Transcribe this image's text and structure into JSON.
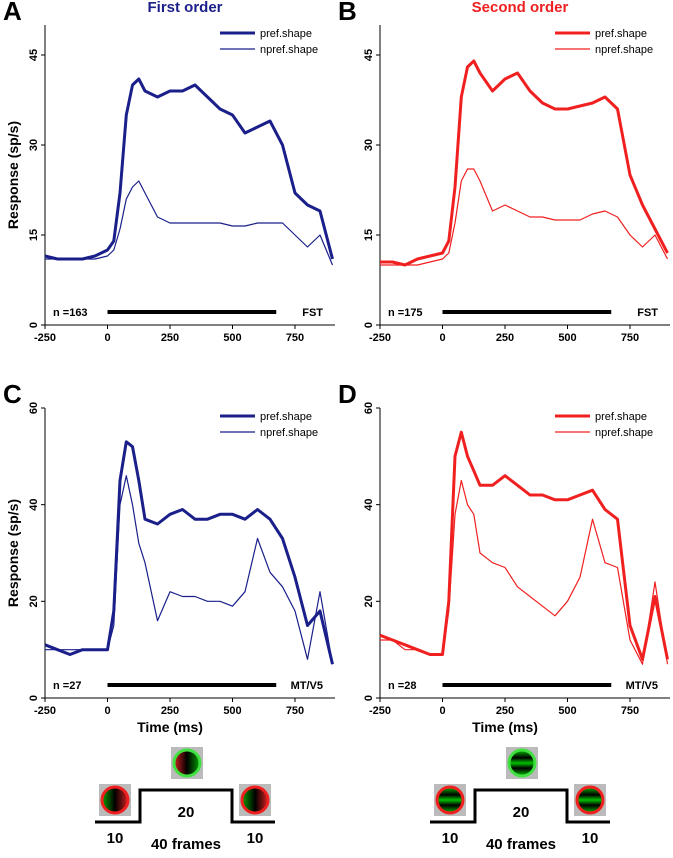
{
  "chart_data": [
    {
      "type": "line",
      "panel_label": "A",
      "title": "First order",
      "title_color": "#1a1f8a",
      "ylabel": "Response (sp/s)",
      "x": [
        -250,
        -200,
        -150,
        -100,
        -50,
        0,
        25,
        50,
        75,
        100,
        125,
        150,
        200,
        250,
        300,
        350,
        400,
        450,
        500,
        550,
        600,
        650,
        700,
        750,
        800,
        850,
        900
      ],
      "series": [
        {
          "name": "pref.shape",
          "color": "#1a1f8a",
          "width": 3,
          "values": [
            11.5,
            11,
            11,
            11,
            11.5,
            12.5,
            14,
            22,
            35,
            40,
            41,
            39,
            38,
            39,
            39,
            40,
            38,
            36,
            35,
            32,
            33,
            34,
            30,
            22,
            20,
            19,
            11
          ]
        },
        {
          "name": "npref.shape",
          "color": "#1a1f8a",
          "width": 1.2,
          "values": [
            11,
            11,
            11,
            11,
            11,
            11.5,
            12.5,
            16,
            21,
            23,
            24,
            22,
            18,
            17,
            17,
            17,
            17,
            17,
            16.5,
            16.5,
            17,
            17,
            17,
            15,
            13,
            15,
            10
          ]
        }
      ],
      "xlim": [
        -250,
        910
      ],
      "ylim": [
        0,
        50
      ],
      "xticks": [
        -250,
        0,
        250,
        500,
        750
      ],
      "yticks": [
        0,
        15,
        30,
        45
      ],
      "stimulus_window": [
        0,
        675
      ],
      "annotations": [
        "n =163",
        "FST"
      ]
    },
    {
      "type": "line",
      "panel_label": "B",
      "title": "Second order",
      "title_color": "#f02020",
      "x": [
        -250,
        -200,
        -150,
        -100,
        -50,
        0,
        25,
        50,
        75,
        100,
        125,
        150,
        200,
        250,
        300,
        350,
        400,
        450,
        500,
        550,
        600,
        650,
        700,
        750,
        800,
        850,
        900
      ],
      "series": [
        {
          "name": "pref.shape",
          "color": "#f02020",
          "width": 3,
          "values": [
            10.5,
            10.5,
            10,
            11,
            11.5,
            12,
            14,
            23,
            38,
            43,
            44,
            42,
            39,
            41,
            42,
            39,
            37,
            36,
            36,
            36.5,
            37,
            38,
            36,
            25,
            20,
            16,
            12
          ]
        },
        {
          "name": "npref.shape",
          "color": "#f02020",
          "width": 1.2,
          "values": [
            10,
            10,
            10,
            10,
            10.5,
            11,
            12,
            17,
            24,
            26,
            26,
            24,
            19,
            20,
            19,
            18,
            18,
            17.5,
            17.5,
            17.5,
            18.5,
            19,
            18,
            15,
            13,
            15,
            11
          ]
        }
      ],
      "xlim": [
        -250,
        910
      ],
      "ylim": [
        0,
        50
      ],
      "xticks": [
        -250,
        0,
        250,
        500,
        750
      ],
      "yticks": [
        0,
        15,
        30,
        45
      ],
      "stimulus_window": [
        0,
        675
      ],
      "annotations": [
        "n =175",
        "FST"
      ]
    },
    {
      "type": "line",
      "panel_label": "C",
      "ylabel": "Response (sp/s)",
      "xlabel": "Time (ms)",
      "x": [
        -250,
        -200,
        -150,
        -100,
        -50,
        0,
        25,
        50,
        75,
        100,
        125,
        150,
        200,
        250,
        300,
        350,
        400,
        450,
        500,
        550,
        600,
        650,
        700,
        750,
        800,
        850,
        900
      ],
      "series": [
        {
          "name": "pref.shape",
          "color": "#1a1f8a",
          "width": 3,
          "values": [
            11,
            10,
            9,
            10,
            10,
            10,
            18,
            45,
            53,
            52,
            45,
            37,
            36,
            38,
            39,
            37,
            37,
            38,
            38,
            37,
            39,
            37,
            33,
            25,
            15,
            18,
            7
          ]
        },
        {
          "name": "npref.shape",
          "color": "#1a1f8a",
          "width": 1.2,
          "values": [
            10,
            10,
            10,
            10,
            10,
            10,
            15,
            40,
            46,
            40,
            32,
            28,
            16,
            22,
            21,
            21,
            20,
            20,
            19,
            22,
            33,
            26,
            23,
            18,
            8,
            22,
            7
          ]
        }
      ],
      "xlim": [
        -250,
        910
      ],
      "ylim": [
        0,
        60
      ],
      "xticks": [
        -250,
        0,
        250,
        500,
        750
      ],
      "yticks": [
        0,
        20,
        40,
        60
      ],
      "stimulus_window": [
        0,
        675
      ],
      "annotations": [
        "n =27",
        "MT/V5"
      ]
    },
    {
      "type": "line",
      "panel_label": "D",
      "xlabel": "Time (ms)",
      "x": [
        -250,
        -200,
        -150,
        -100,
        -50,
        0,
        25,
        50,
        75,
        100,
        125,
        150,
        200,
        250,
        300,
        350,
        400,
        450,
        500,
        550,
        600,
        650,
        700,
        750,
        800,
        850,
        900
      ],
      "series": [
        {
          "name": "pref.shape",
          "color": "#f02020",
          "width": 3,
          "values": [
            13,
            12,
            11,
            10,
            9,
            9,
            20,
            50,
            55,
            50,
            47,
            44,
            44,
            46,
            44,
            42,
            42,
            41,
            41,
            42,
            43,
            39,
            37,
            15,
            8,
            21,
            8
          ]
        },
        {
          "name": "npref.shape",
          "color": "#f02020",
          "width": 1.2,
          "values": [
            12,
            12,
            10,
            10,
            9,
            9,
            18,
            38,
            45,
            40,
            38,
            30,
            28,
            27,
            23,
            21,
            19,
            17,
            20,
            25,
            37,
            28,
            27,
            12,
            7,
            24,
            7
          ]
        }
      ],
      "xlim": [
        -250,
        910
      ],
      "ylim": [
        0,
        60
      ],
      "xticks": [
        -250,
        0,
        250,
        500,
        750
      ],
      "yticks": [
        0,
        20,
        40,
        60
      ],
      "stimulus_window": [
        0,
        675
      ],
      "annotations": [
        "n =28",
        "MT/V5"
      ]
    }
  ],
  "stimulus_diagrams": [
    {
      "labels": [
        "10",
        "20",
        "10"
      ],
      "duration": "40 frames",
      "kind": "first"
    },
    {
      "labels": [
        "10",
        "20",
        "10"
      ],
      "duration": "40 frames",
      "kind": "second"
    }
  ]
}
